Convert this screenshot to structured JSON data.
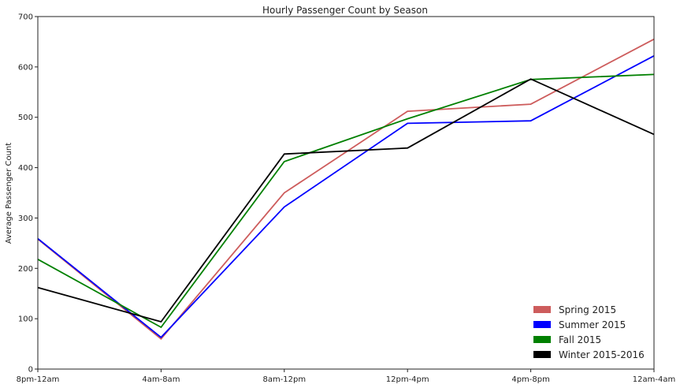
{
  "chart_data": {
    "type": "line",
    "title": "Hourly Passenger Count by Season",
    "xlabel": "",
    "ylabel": "Average Passenger Count",
    "categories": [
      "8pm-12am",
      "4am-8am",
      "8am-12pm",
      "12pm-4pm",
      "4pm-8pm",
      "12am-4am"
    ],
    "ylim": [
      0,
      700
    ],
    "yticks": [
      0,
      100,
      200,
      300,
      400,
      500,
      600,
      700
    ],
    "grid": false,
    "legend": "bottom-right",
    "series": [
      {
        "name": "Spring 2015",
        "color": "#cd5c5c",
        "values": [
          258,
          60,
          350,
          512,
          526,
          655
        ]
      },
      {
        "name": "Summer 2015",
        "color": "#0000ff",
        "values": [
          259,
          63,
          322,
          488,
          493,
          622
        ]
      },
      {
        "name": "Fall 2015",
        "color": "#008000",
        "values": [
          218,
          83,
          412,
          497,
          575,
          585
        ]
      },
      {
        "name": "Winter 2015-2016",
        "color": "#000000",
        "values": [
          162,
          94,
          427,
          439,
          576,
          466
        ]
      }
    ]
  }
}
